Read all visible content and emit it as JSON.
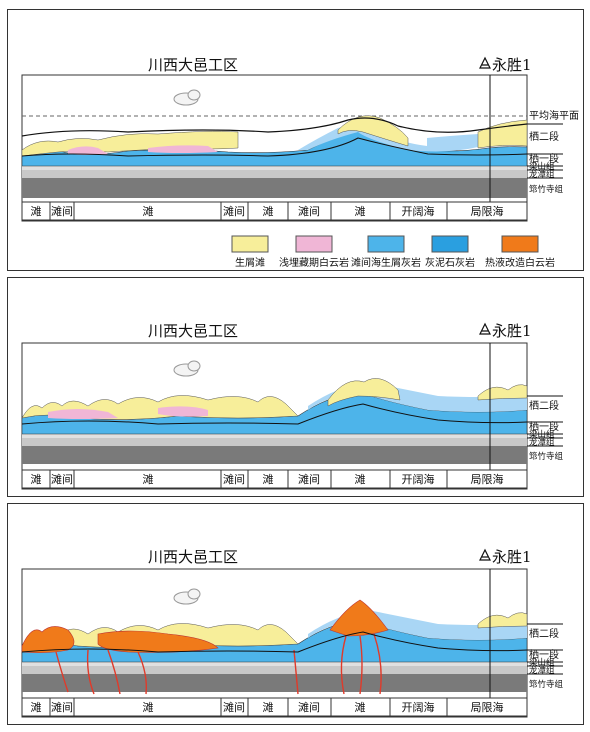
{
  "panels": [
    {
      "title": "川西大邑工区",
      "well": "永胜1",
      "sea_level_label": "平均海平面",
      "formations": [
        "栖二段",
        "栖一段",
        "梁山组",
        "龙潭组",
        "筇竹寺组"
      ],
      "facies": [
        "滩",
        "滩间",
        "滩",
        "滩间",
        "滩",
        "滩间",
        "滩",
        "开阔海",
        "局限海"
      ]
    },
    {
      "title": "川西大邑工区",
      "well": "永胜1",
      "formations": [
        "栖二段",
        "栖一段",
        "梁山组",
        "龙潭组",
        "筇竹寺组"
      ],
      "facies": [
        "滩",
        "滩间",
        "滩",
        "滩间",
        "滩",
        "滩间",
        "滩",
        "开阔海",
        "局限海"
      ]
    },
    {
      "title": "川西大邑工区",
      "well": "永胜1",
      "formations": [
        "栖二段",
        "栖一段",
        "梁山组",
        "龙潭组",
        "筇竹寺组"
      ],
      "facies": [
        "滩",
        "滩间",
        "滩",
        "滩间",
        "滩",
        "滩间",
        "滩",
        "开阔海",
        "局限海"
      ]
    }
  ],
  "legend": [
    {
      "label": "生屑滩",
      "color": "#f7ee9a"
    },
    {
      "label": "浅埋藏期白云岩",
      "color": "#f0b6d6"
    },
    {
      "label": "滩间海生屑灰岩",
      "color": "#4db4ea"
    },
    {
      "label": "灰泥石灰岩",
      "color": "#2a9fe0"
    },
    {
      "label": "热液改造白云岩",
      "color": "#f07a1a"
    }
  ],
  "colors": {
    "shoal": "#f7ee9a",
    "dolomite_pink": "#f0b6d6",
    "limestone_blue": "#4db4ea",
    "light_blue": "#a9d6f5",
    "mud_limestone": "#2a9fe0",
    "hydrothermal": "#f07a1a",
    "gray_shale": "#c8c8c8",
    "dark_gray": "#7a7a7a"
  }
}
